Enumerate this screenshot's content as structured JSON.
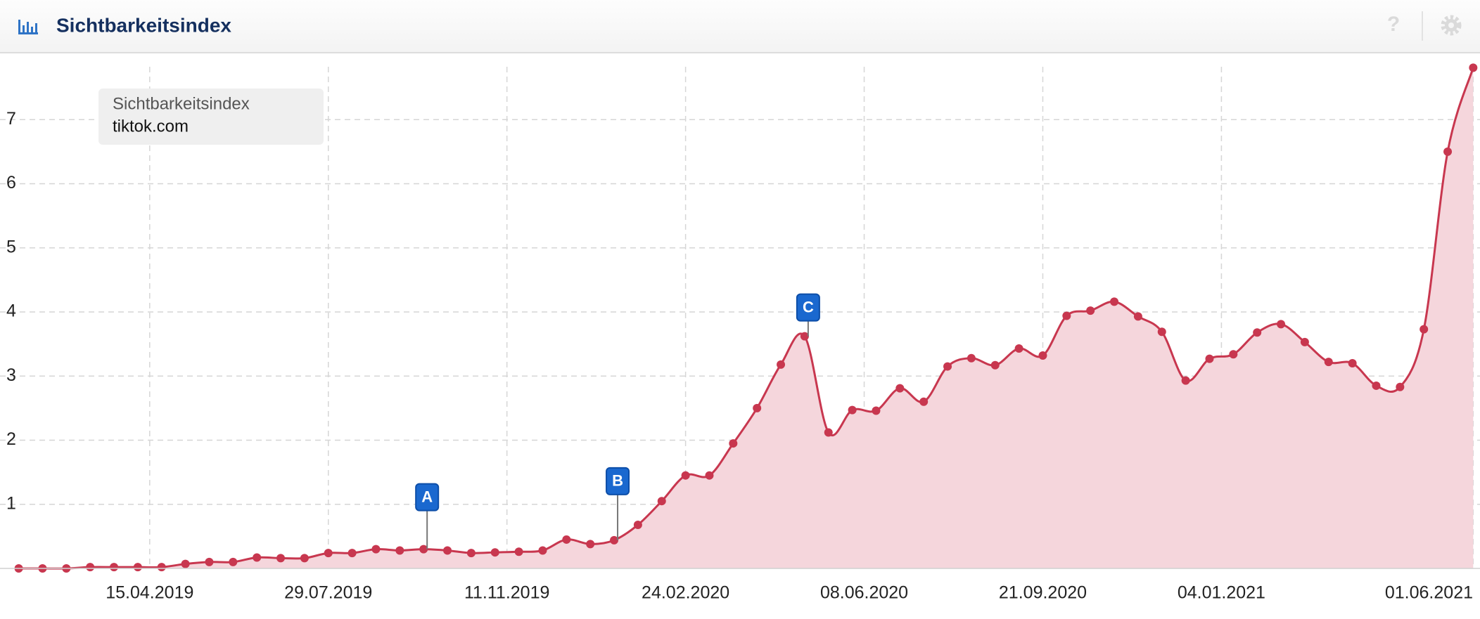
{
  "header": {
    "title": "Sichtbarkeitsindex",
    "help": "?"
  },
  "chart_data": {
    "type": "area",
    "legend_title": "Sichtbarkeitsindex",
    "x": [
      "28.01.2019",
      "11.02.2019",
      "25.02.2019",
      "11.03.2019",
      "25.03.2019",
      "08.04.2019",
      "22.04.2019",
      "06.05.2019",
      "20.05.2019",
      "03.06.2019",
      "17.06.2019",
      "01.07.2019",
      "15.07.2019",
      "29.07.2019",
      "12.08.2019",
      "26.08.2019",
      "09.09.2019",
      "23.09.2019",
      "07.10.2019",
      "21.10.2019",
      "04.11.2019",
      "18.11.2019",
      "02.12.2019",
      "16.12.2019",
      "30.12.2019",
      "13.01.2020",
      "27.01.2020",
      "10.02.2020",
      "24.02.2020",
      "09.03.2020",
      "23.03.2020",
      "06.04.2020",
      "20.04.2020",
      "04.05.2020",
      "18.05.2020",
      "01.06.2020",
      "15.06.2020",
      "29.06.2020",
      "13.07.2020",
      "27.07.2020",
      "10.08.2020",
      "24.08.2020",
      "07.09.2020",
      "21.09.2020",
      "05.10.2020",
      "19.10.2020",
      "02.11.2020",
      "16.11.2020",
      "30.11.2020",
      "14.12.2020",
      "28.12.2020",
      "11.01.2021",
      "25.01.2021",
      "08.02.2021",
      "22.02.2021",
      "08.03.2021",
      "22.03.2021",
      "05.04.2021",
      "19.04.2021",
      "03.05.2021",
      "17.05.2021",
      "01.06.2021"
    ],
    "series": [
      {
        "name": "tiktok.com",
        "color": "#c8374f",
        "fill": "#f5d6dc",
        "values": [
          0.0,
          0.0,
          0.0,
          0.02,
          0.02,
          0.02,
          0.02,
          0.07,
          0.1,
          0.1,
          0.17,
          0.16,
          0.16,
          0.24,
          0.24,
          0.3,
          0.28,
          0.3,
          0.28,
          0.24,
          0.25,
          0.26,
          0.28,
          0.45,
          0.38,
          0.44,
          0.68,
          1.05,
          1.45,
          1.45,
          1.95,
          2.5,
          3.18,
          3.62,
          2.12,
          2.47,
          2.46,
          2.81,
          2.6,
          3.15,
          3.28,
          3.17,
          3.43,
          3.32,
          3.94,
          4.02,
          4.16,
          3.93,
          3.69,
          2.93,
          3.27,
          3.34,
          3.68,
          3.81,
          3.53,
          3.22,
          3.2,
          2.85,
          2.83,
          3.73,
          6.5,
          7.81
        ]
      }
    ],
    "annotations": [
      {
        "label": "A",
        "x": "23.09.2019"
      },
      {
        "label": "B",
        "x": "13.01.2020"
      },
      {
        "label": "C",
        "x": "04.05.2020"
      }
    ],
    "xlim": [
      "17.01.2019",
      "05.06.2021"
    ],
    "xticks": [
      "15.04.2019",
      "29.07.2019",
      "11.11.2019",
      "24.02.2020",
      "08.06.2020",
      "21.09.2020",
      "04.01.2021",
      "01.06.2021"
    ],
    "ylim": [
      0,
      8
    ],
    "yticks": [
      1,
      2,
      3,
      4,
      5,
      6,
      7
    ],
    "grid": true
  }
}
